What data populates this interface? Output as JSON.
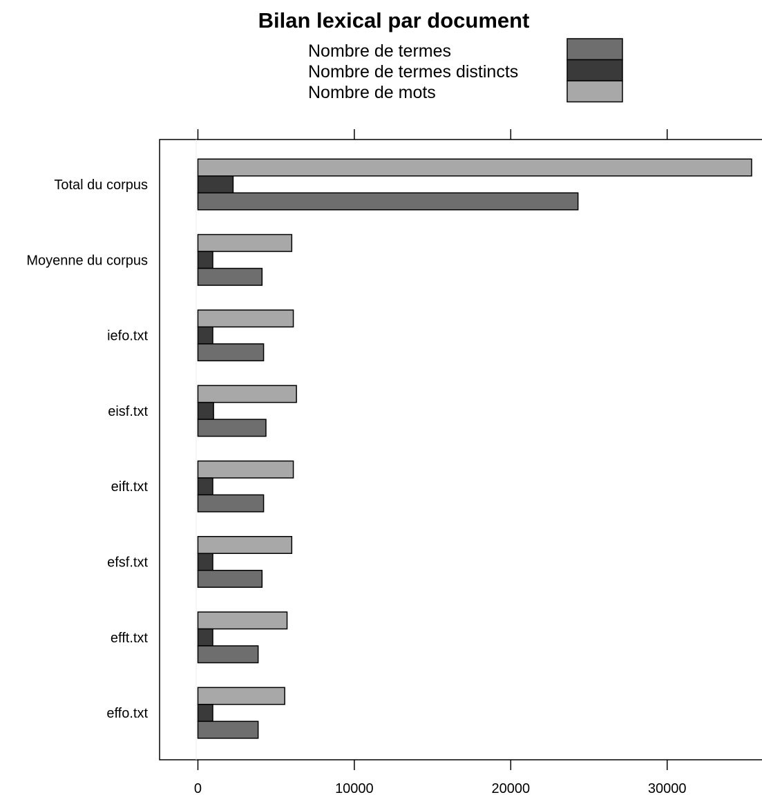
{
  "chart_data": {
    "type": "bar",
    "orientation": "horizontal",
    "title": "Bilan lexical par document",
    "categories": [
      "Total du corpus",
      "Moyenne du corpus",
      "iefo.txt",
      "eisf.txt",
      "eift.txt",
      "efsf.txt",
      "efft.txt",
      "effo.txt"
    ],
    "series": [
      {
        "name": "Nombre de termes",
        "color": "#6e6e6e",
        "values": [
          24300,
          4100,
          4200,
          4350,
          4200,
          4100,
          3850,
          3850
        ]
      },
      {
        "name": "Nombre de termes distincts",
        "color": "#3a3a3a",
        "values": [
          2250,
          950,
          950,
          1000,
          950,
          950,
          950,
          950
        ]
      },
      {
        "name": "Nombre de mots",
        "color": "#a8a8a8",
        "values": [
          35400,
          6000,
          6100,
          6300,
          6100,
          6000,
          5700,
          5550
        ]
      }
    ],
    "xlim": [
      -2450,
      37300
    ],
    "xticks": [
      0,
      10000,
      20000,
      30000
    ],
    "xtick_labels": [
      "0",
      "10000",
      "20000",
      "30000"
    ],
    "legend_position": "top",
    "grid": false
  }
}
